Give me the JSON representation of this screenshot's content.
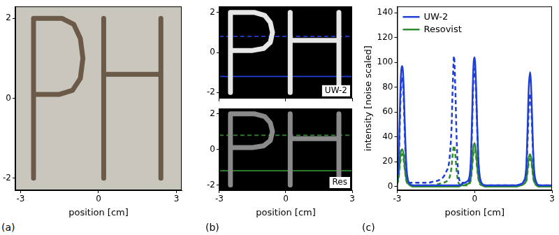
{
  "chart_data": [
    {
      "type": "image",
      "panel": "(a)",
      "xlabel": "position [cm]",
      "xlim": [
        -3.2,
        3.2
      ],
      "xticks": [
        -3,
        0,
        3
      ],
      "ylim": [
        -2.3,
        2.3
      ],
      "yticks": [
        -2,
        0,
        2
      ],
      "grid": false,
      "color": "#c9c6bd",
      "series": [
        {
          "x": [
            -2.5,
            -2.5,
            -2.5,
            -2.5,
            -1.4,
            -0.95,
            -0.7,
            -0.6,
            -0.7,
            -1.0,
            -1.5,
            -2.5,
            -2.5,
            0.2,
            0.2,
            0.2,
            2.4,
            2.4,
            2.4,
            0.2,
            2.4
          ],
          "values": [
            -2,
            2,
            null,
            2,
            2,
            1.85,
            1.5,
            1.0,
            0.5,
            0.2,
            0.1,
            0.1,
            null,
            -2,
            2,
            null,
            -2,
            2,
            null,
            0.6,
            0.6
          ],
          "color": "#6b5a48",
          "line_style": "thick"
        }
      ]
    },
    {
      "type": "image",
      "annotations": [
        "UW-2"
      ],
      "xlim": [
        -3,
        3
      ],
      "xticks": [
        -3,
        0,
        3
      ],
      "ylim": [
        -2.3,
        2.3
      ],
      "yticks": [
        -2,
        0,
        2
      ],
      "grid": false,
      "tick_labels": "y",
      "color": "#000000",
      "series": [
        {
          "x": [
            -2.5,
            -2.5,
            -2.5,
            -2.5,
            -1.4,
            -0.95,
            -0.7,
            -0.6,
            -0.7,
            -1.0,
            -1.5,
            -2.5,
            -2.5,
            0.2,
            0.2,
            0.2,
            2.4,
            2.4,
            2.4,
            0.2,
            2.4
          ],
          "values": [
            -2,
            2,
            null,
            2,
            2,
            1.85,
            1.5,
            1.0,
            0.5,
            0.2,
            0.1,
            0.1,
            null,
            -2,
            2,
            null,
            -2,
            2,
            null,
            0.6,
            0.6
          ],
          "color": "#e6e6e6",
          "line_style": "thick"
        },
        {
          "x": [
            -3,
            3
          ],
          "values": [
            0.8,
            0.8
          ],
          "color": "#1f3fd6",
          "line_style": "dashed"
        },
        {
          "x": [
            -3,
            3
          ],
          "values": [
            -1.2,
            -1.2
          ],
          "color": "#1f3fd6",
          "line_style": "solid"
        }
      ]
    },
    {
      "type": "image",
      "panel": "(b)",
      "annotations": [
        "Res"
      ],
      "xlabel": "position [cm]",
      "xlim": [
        -3,
        3
      ],
      "xticks": [
        -3,
        0,
        3
      ],
      "ylim": [
        -2.3,
        2.3
      ],
      "yticks": [
        -2,
        0,
        2
      ],
      "grid": false,
      "color": "#000000",
      "series": [
        {
          "x": [
            -2.5,
            -2.5,
            -2.5,
            -2.5,
            -1.4,
            -0.95,
            -0.7,
            -0.6,
            -0.7,
            -1.0,
            -1.5,
            -2.5,
            -2.5,
            0.2,
            0.2,
            0.2,
            2.4,
            2.4,
            2.4,
            0.2,
            2.4
          ],
          "values": [
            -2,
            2,
            null,
            2,
            2,
            1.85,
            1.5,
            1.0,
            0.5,
            0.2,
            0.1,
            0.1,
            null,
            -2,
            2,
            null,
            -2,
            2,
            null,
            0.6,
            0.6
          ],
          "color": "#8a8a8a",
          "line_style": "thick"
        },
        {
          "x": [
            -3,
            3
          ],
          "values": [
            0.8,
            0.8
          ],
          "color": "#2e8b2e",
          "line_style": "dashed"
        },
        {
          "x": [
            -3,
            3
          ],
          "values": [
            -1.2,
            -1.2
          ],
          "color": "#2e8b2e",
          "line_style": "solid"
        }
      ]
    },
    {
      "type": "line",
      "panel": "(c)",
      "xlabel": "position [cm]",
      "ylabel": "intensity [noise scaled]",
      "xlim": [
        -3,
        3
      ],
      "xticks": [
        -3,
        0,
        3
      ],
      "ylim": [
        -3,
        145
      ],
      "yticks": [
        0,
        20,
        40,
        60,
        80,
        100,
        120,
        140
      ],
      "grid": false,
      "legend": "upper left",
      "x": [
        -3,
        -2.95,
        -2.9,
        -2.85,
        -2.8,
        -2.75,
        -2.7,
        -2.65,
        -2.6,
        -2.5,
        -2.4,
        -2.2,
        -2.0,
        -1.8,
        -1.6,
        -1.4,
        -1.2,
        -1.1,
        -1.0,
        -0.95,
        -0.9,
        -0.85,
        -0.8,
        -0.75,
        -0.7,
        -0.65,
        -0.6,
        -0.5,
        -0.4,
        -0.3,
        -0.2,
        -0.15,
        -0.1,
        -0.05,
        0,
        0.05,
        0.1,
        0.15,
        0.2,
        0.3,
        0.4,
        0.6,
        0.8,
        1.0,
        1.2,
        1.4,
        1.6,
        1.8,
        1.9,
        2.0,
        2.05,
        2.1,
        2.15,
        2.2,
        2.25,
        2.3,
        2.4,
        2.5,
        2.6,
        2.7,
        2.8,
        2.9,
        3.0
      ],
      "series": [
        {
          "name": "UW-2",
          "color": "#1f3fd6",
          "line_style": "solid",
          "values": [
            8,
            20,
            60,
            92,
            97,
            80,
            45,
            18,
            7,
            2,
            1,
            1,
            1,
            1,
            1,
            1,
            1,
            1,
            1,
            1,
            1,
            1,
            1,
            1,
            1,
            1,
            1,
            2,
            3,
            4,
            8,
            20,
            55,
            95,
            104,
            85,
            50,
            20,
            8,
            2,
            1,
            1,
            1,
            1,
            1,
            1,
            1,
            2,
            4,
            15,
            45,
            80,
            92,
            75,
            40,
            15,
            3,
            1,
            1,
            1,
            1,
            1,
            1
          ]
        },
        {
          "color": "#1f3fd6",
          "line_style": "dashed",
          "values": [
            4,
            15,
            50,
            82,
            88,
            70,
            38,
            14,
            6,
            3,
            3,
            3,
            3,
            3,
            4,
            5,
            8,
            12,
            18,
            28,
            45,
            80,
            105,
            80,
            40,
            15,
            6,
            3,
            3,
            3,
            5,
            15,
            45,
            85,
            95,
            78,
            45,
            18,
            7,
            2,
            1,
            1,
            1,
            1,
            1,
            1,
            1,
            2,
            4,
            12,
            35,
            62,
            75,
            62,
            35,
            12,
            3,
            1,
            1,
            1,
            1,
            1,
            1
          ]
        },
        {
          "name": "Resovist",
          "color": "#2e8b2e",
          "line_style": "solid",
          "values": [
            4,
            8,
            20,
            29,
            30,
            25,
            14,
            6,
            3,
            1,
            0,
            0,
            0,
            0,
            0,
            0,
            0,
            0,
            0,
            0,
            0,
            0,
            0,
            0,
            0,
            0,
            0,
            1,
            1,
            2,
            3,
            7,
            18,
            31,
            35,
            29,
            17,
            7,
            3,
            1,
            0,
            0,
            0,
            0,
            0,
            0,
            0,
            1,
            2,
            5,
            14,
            23,
            26,
            22,
            13,
            5,
            1,
            0,
            0,
            0,
            0,
            0,
            0
          ]
        },
        {
          "color": "#2e8b2e",
          "line_style": "dashed",
          "values": [
            2,
            6,
            16,
            24,
            26,
            21,
            12,
            5,
            2,
            1,
            1,
            1,
            1,
            1,
            1,
            2,
            3,
            4,
            6,
            9,
            15,
            26,
            33,
            26,
            13,
            5,
            2,
            1,
            1,
            1,
            2,
            5,
            14,
            26,
            30,
            25,
            14,
            6,
            2,
            1,
            0,
            0,
            0,
            0,
            0,
            0,
            0,
            1,
            2,
            4,
            11,
            19,
            22,
            19,
            11,
            4,
            1,
            0,
            0,
            0,
            0,
            0,
            0
          ]
        }
      ]
    }
  ]
}
